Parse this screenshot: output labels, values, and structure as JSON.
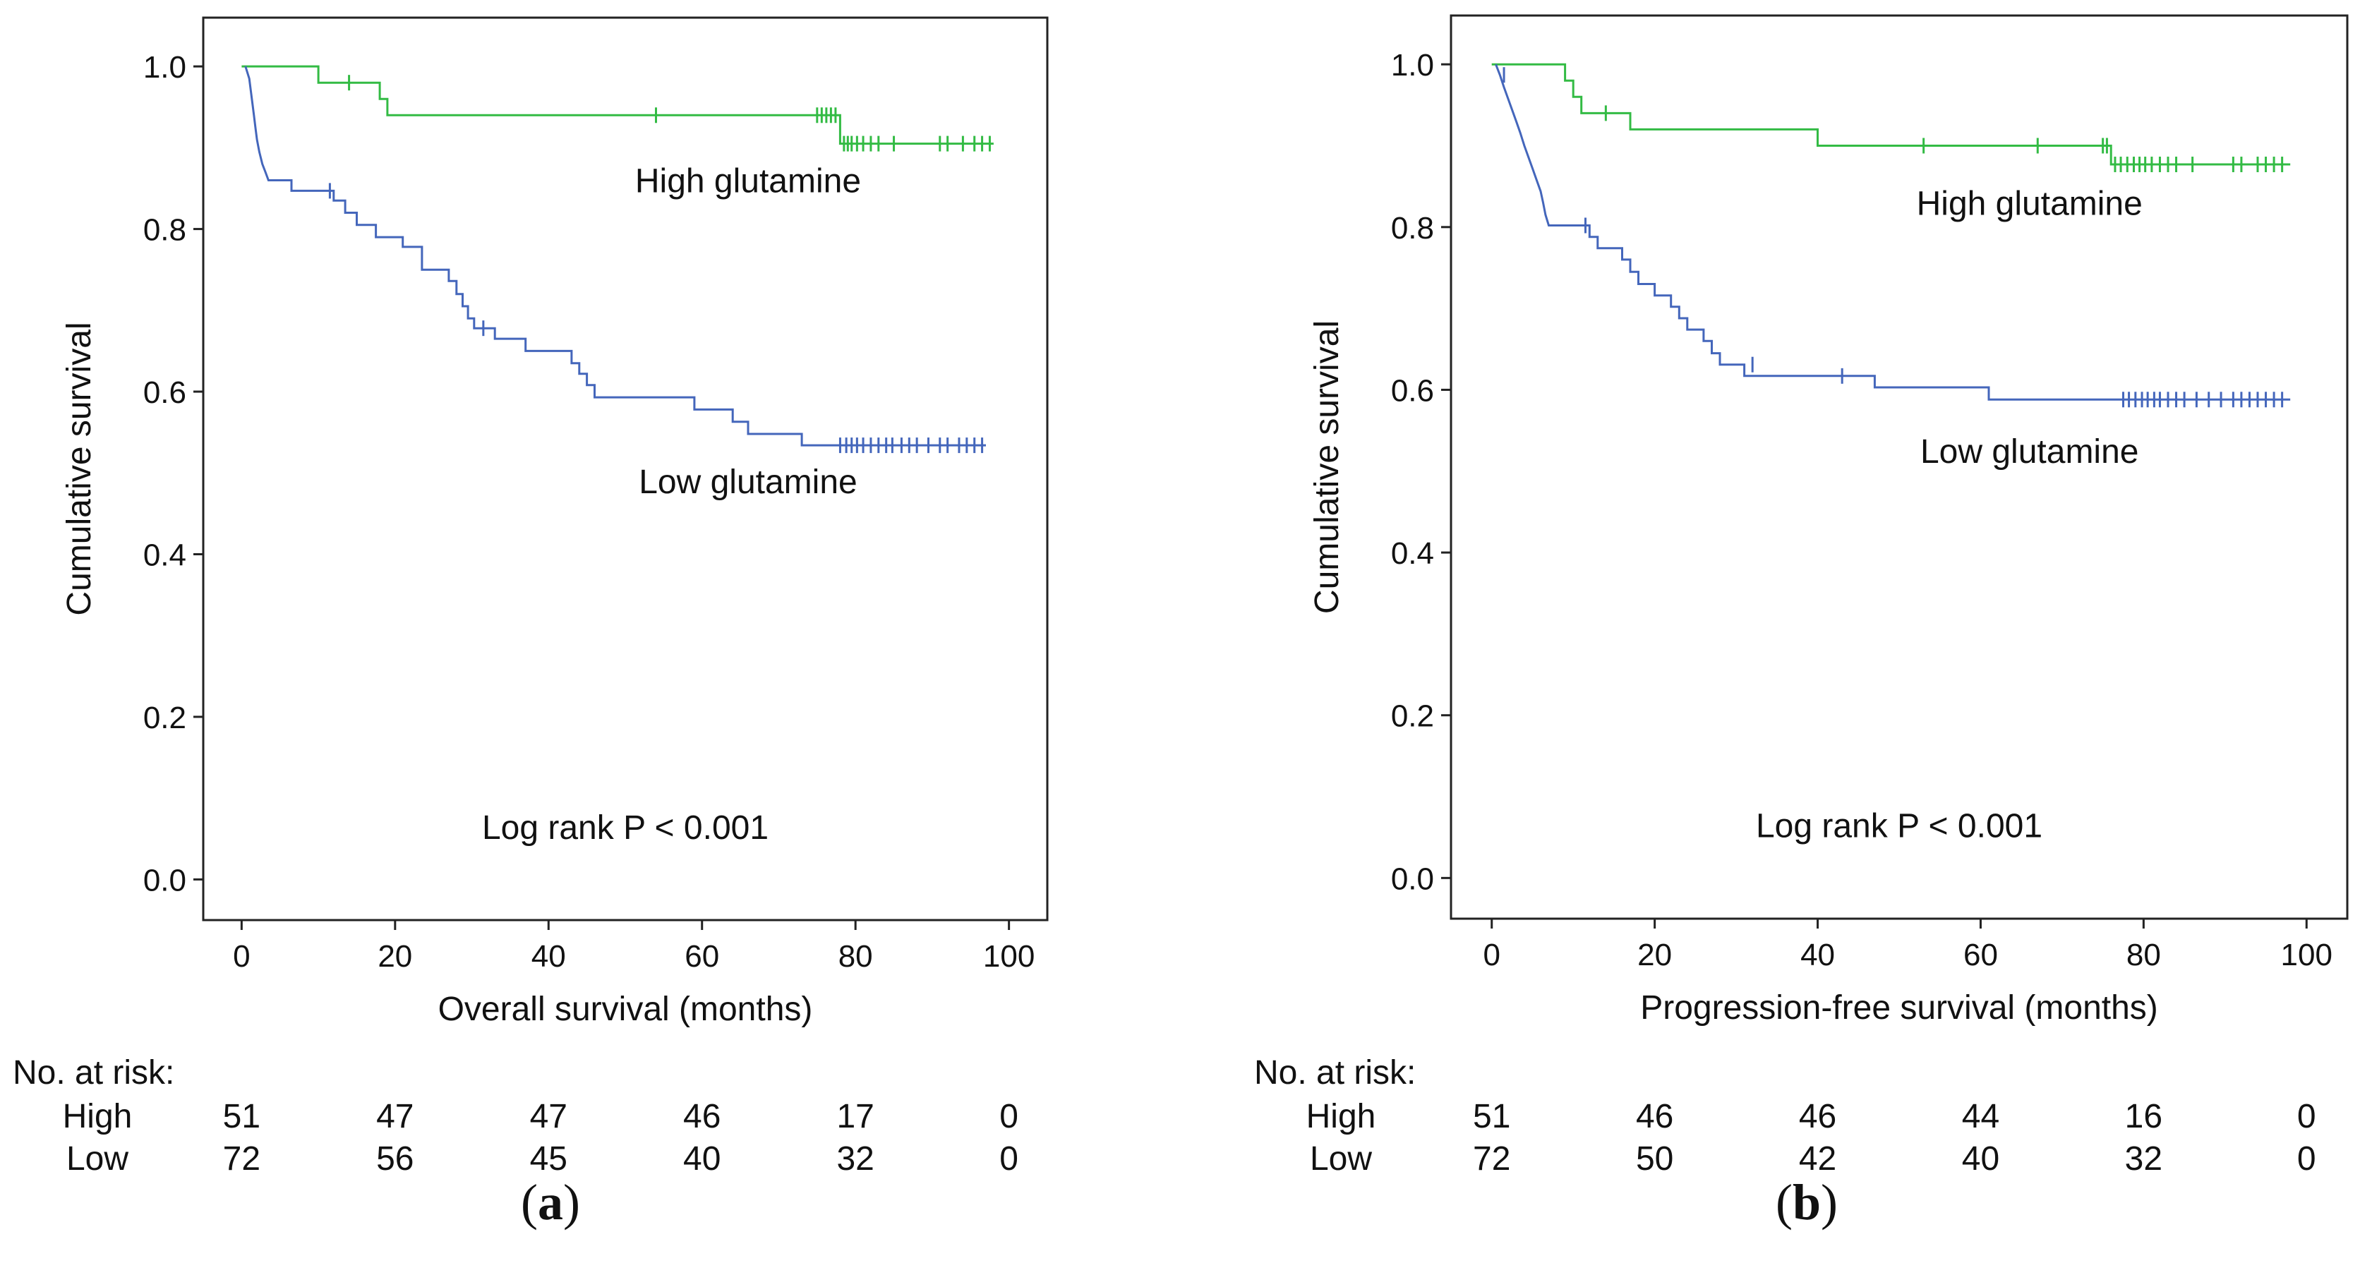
{
  "chart_data": [
    {
      "type": "line",
      "subtype": "kaplan-meier",
      "panel_label": "a",
      "xlabel": "Overall survival (months)",
      "ylabel": "Cumulative survival",
      "xlim": [
        -5,
        105
      ],
      "ylim": [
        -0.05,
        1.06
      ],
      "xticks": [
        0,
        20,
        40,
        60,
        80,
        100
      ],
      "yticks": [
        "0.0",
        "0.2",
        "0.4",
        "0.6",
        "0.8",
        "1.0"
      ],
      "annotation": "Log rank P < 0.001",
      "series": [
        {
          "name": "High glutamine",
          "color": "#33bb44",
          "label_pos": [
            66,
            0.845
          ],
          "points": [
            [
              0,
              1.0
            ],
            [
              10,
              1.0
            ],
            [
              10,
              0.98
            ],
            [
              18,
              0.98
            ],
            [
              18,
              0.96
            ],
            [
              19,
              0.96
            ],
            [
              19,
              0.94
            ],
            [
              78,
              0.94
            ],
            [
              78,
              0.905
            ],
            [
              98,
              0.905
            ]
          ],
          "censors": [
            [
              14,
              0.98
            ],
            [
              54,
              0.94
            ],
            [
              75,
              0.94
            ],
            [
              75.6,
              0.94
            ],
            [
              76.2,
              0.94
            ],
            [
              76.8,
              0.94
            ],
            [
              77.4,
              0.94
            ],
            [
              78.5,
              0.905
            ],
            [
              79,
              0.905
            ],
            [
              79.5,
              0.905
            ],
            [
              80.2,
              0.905
            ],
            [
              81,
              0.905
            ],
            [
              82,
              0.905
            ],
            [
              83,
              0.905
            ],
            [
              85,
              0.905
            ],
            [
              91,
              0.905
            ],
            [
              92,
              0.905
            ],
            [
              94,
              0.905
            ],
            [
              95.5,
              0.905
            ],
            [
              96.5,
              0.905
            ],
            [
              97.5,
              0.905
            ]
          ]
        },
        {
          "name": "Low glutamine",
          "color": "#4466bb",
          "label_pos": [
            66,
            0.475
          ],
          "points": [
            [
              0.5,
              1.0
            ],
            [
              1,
              0.985
            ],
            [
              1.2,
              0.97
            ],
            [
              1.4,
              0.955
            ],
            [
              1.6,
              0.94
            ],
            [
              1.8,
              0.925
            ],
            [
              2,
              0.91
            ],
            [
              2.3,
              0.895
            ],
            [
              2.7,
              0.88
            ],
            [
              3.1,
              0.87
            ],
            [
              3.5,
              0.86
            ],
            [
              6.5,
              0.86
            ],
            [
              6.5,
              0.847
            ],
            [
              12,
              0.847
            ],
            [
              12,
              0.835
            ],
            [
              13.5,
              0.835
            ],
            [
              13.5,
              0.82
            ],
            [
              15,
              0.82
            ],
            [
              15,
              0.805
            ],
            [
              17.5,
              0.805
            ],
            [
              17.5,
              0.79
            ],
            [
              21,
              0.79
            ],
            [
              21,
              0.778
            ],
            [
              23.5,
              0.778
            ],
            [
              23.5,
              0.764
            ],
            [
              23.5,
              0.75
            ],
            [
              27,
              0.75
            ],
            [
              27,
              0.736
            ],
            [
              28,
              0.736
            ],
            [
              28,
              0.72
            ],
            [
              28.8,
              0.72
            ],
            [
              28.8,
              0.705
            ],
            [
              29.5,
              0.705
            ],
            [
              29.5,
              0.69
            ],
            [
              30.3,
              0.69
            ],
            [
              30.3,
              0.678
            ],
            [
              33,
              0.678
            ],
            [
              33,
              0.665
            ],
            [
              37,
              0.665
            ],
            [
              37,
              0.65
            ],
            [
              43,
              0.65
            ],
            [
              43,
              0.635
            ],
            [
              44,
              0.635
            ],
            [
              44,
              0.622
            ],
            [
              45,
              0.622
            ],
            [
              45,
              0.608
            ],
            [
              46,
              0.608
            ],
            [
              46,
              0.593
            ],
            [
              59,
              0.593
            ],
            [
              59,
              0.578
            ],
            [
              64,
              0.578
            ],
            [
              64,
              0.563
            ],
            [
              66,
              0.563
            ],
            [
              66,
              0.548
            ],
            [
              73,
              0.548
            ],
            [
              73,
              0.534
            ],
            [
              97,
              0.534
            ]
          ],
          "censors": [
            [
              11.5,
              0.847
            ],
            [
              31.5,
              0.678
            ],
            [
              78,
              0.534
            ],
            [
              78.8,
              0.534
            ],
            [
              79.5,
              0.534
            ],
            [
              80.2,
              0.534
            ],
            [
              81,
              0.534
            ],
            [
              82,
              0.534
            ],
            [
              83,
              0.534
            ],
            [
              84,
              0.534
            ],
            [
              84.8,
              0.534
            ],
            [
              86,
              0.534
            ],
            [
              87,
              0.534
            ],
            [
              88,
              0.534
            ],
            [
              89.5,
              0.534
            ],
            [
              91,
              0.534
            ],
            [
              92,
              0.534
            ],
            [
              93.5,
              0.534
            ],
            [
              94.5,
              0.534
            ],
            [
              95.5,
              0.534
            ],
            [
              96.5,
              0.534
            ]
          ]
        }
      ],
      "risk_table": {
        "title": "No. at risk:",
        "rows": [
          {
            "label": "High",
            "values": [
              "51",
              "47",
              "47",
              "46",
              "17",
              "0"
            ]
          },
          {
            "label": "Low",
            "values": [
              "72",
              "56",
              "45",
              "40",
              "32",
              "0"
            ]
          }
        ]
      }
    },
    {
      "type": "line",
      "subtype": "kaplan-meier",
      "panel_label": "b",
      "xlabel": "Progression-free survival (months)",
      "ylabel": "Cumulative survival",
      "xlim": [
        -5,
        105
      ],
      "ylim": [
        -0.05,
        1.06
      ],
      "xticks": [
        0,
        20,
        40,
        60,
        80,
        100
      ],
      "yticks": [
        "0.0",
        "0.2",
        "0.4",
        "0.6",
        "0.8",
        "1.0"
      ],
      "annotation": "Log rank P < 0.001",
      "series": [
        {
          "name": "High glutamine",
          "color": "#33bb44",
          "label_pos": [
            66,
            0.815
          ],
          "points": [
            [
              0,
              1.0
            ],
            [
              9,
              1.0
            ],
            [
              9,
              0.98
            ],
            [
              10,
              0.98
            ],
            [
              10,
              0.96
            ],
            [
              11,
              0.96
            ],
            [
              11,
              0.94
            ],
            [
              17,
              0.94
            ],
            [
              17,
              0.92
            ],
            [
              40,
              0.92
            ],
            [
              40,
              0.9
            ],
            [
              76,
              0.9
            ],
            [
              76,
              0.877
            ],
            [
              98,
              0.877
            ]
          ],
          "censors": [
            [
              14,
              0.94
            ],
            [
              53,
              0.9
            ],
            [
              67,
              0.9
            ],
            [
              75,
              0.9
            ],
            [
              75.5,
              0.9
            ],
            [
              76.5,
              0.877
            ],
            [
              77.2,
              0.877
            ],
            [
              78,
              0.877
            ],
            [
              78.8,
              0.877
            ],
            [
              79.5,
              0.877
            ],
            [
              80.2,
              0.877
            ],
            [
              81,
              0.877
            ],
            [
              82,
              0.877
            ],
            [
              83,
              0.877
            ],
            [
              84,
              0.877
            ],
            [
              86,
              0.877
            ],
            [
              91,
              0.877
            ],
            [
              92,
              0.877
            ],
            [
              94,
              0.877
            ],
            [
              95,
              0.877
            ],
            [
              96,
              0.877
            ],
            [
              97,
              0.877
            ]
          ]
        },
        {
          "name": "Low glutamine",
          "color": "#4466bb",
          "label_pos": [
            66,
            0.51
          ],
          "points": [
            [
              0.5,
              1.0
            ],
            [
              1,
              0.987
            ],
            [
              1.5,
              0.972
            ],
            [
              2,
              0.958
            ],
            [
              2.5,
              0.944
            ],
            [
              3,
              0.93
            ],
            [
              3.5,
              0.916
            ],
            [
              4,
              0.9
            ],
            [
              4.5,
              0.886
            ],
            [
              5,
              0.872
            ],
            [
              5.5,
              0.858
            ],
            [
              6,
              0.844
            ],
            [
              6.3,
              0.83
            ],
            [
              6.6,
              0.815
            ],
            [
              7,
              0.802
            ],
            [
              12,
              0.802
            ],
            [
              12,
              0.788
            ],
            [
              13,
              0.788
            ],
            [
              13,
              0.774
            ],
            [
              16,
              0.774
            ],
            [
              16,
              0.76
            ],
            [
              17,
              0.76
            ],
            [
              17,
              0.745
            ],
            [
              18,
              0.745
            ],
            [
              18,
              0.73
            ],
            [
              20,
              0.73
            ],
            [
              20,
              0.716
            ],
            [
              22,
              0.716
            ],
            [
              22,
              0.702
            ],
            [
              23,
              0.702
            ],
            [
              23,
              0.688
            ],
            [
              24,
              0.688
            ],
            [
              24,
              0.674
            ],
            [
              26,
              0.674
            ],
            [
              26,
              0.66
            ],
            [
              27,
              0.66
            ],
            [
              27,
              0.645
            ],
            [
              28,
              0.645
            ],
            [
              28,
              0.631
            ],
            [
              31,
              0.631
            ],
            [
              31,
              0.617
            ],
            [
              47,
              0.617
            ],
            [
              47,
              0.603
            ],
            [
              61,
              0.603
            ],
            [
              61,
              0.588
            ],
            [
              98,
              0.588
            ]
          ],
          "censors": [
            [
              1.5,
              0.987
            ],
            [
              11.5,
              0.802
            ],
            [
              32,
              0.631
            ],
            [
              43,
              0.617
            ],
            [
              77.5,
              0.588
            ],
            [
              78.2,
              0.588
            ],
            [
              79,
              0.588
            ],
            [
              79.8,
              0.588
            ],
            [
              80.5,
              0.588
            ],
            [
              81.3,
              0.588
            ],
            [
              82,
              0.588
            ],
            [
              83,
              0.588
            ],
            [
              84,
              0.588
            ],
            [
              85,
              0.588
            ],
            [
              86.5,
              0.588
            ],
            [
              88,
              0.588
            ],
            [
              89.5,
              0.588
            ],
            [
              91,
              0.588
            ],
            [
              92,
              0.588
            ],
            [
              93,
              0.588
            ],
            [
              94,
              0.588
            ],
            [
              95,
              0.588
            ],
            [
              96,
              0.588
            ],
            [
              97,
              0.588
            ]
          ]
        }
      ],
      "risk_table": {
        "title": "No. at risk:",
        "rows": [
          {
            "label": "High",
            "values": [
              "51",
              "46",
              "46",
              "44",
              "16",
              "0"
            ]
          },
          {
            "label": "Low",
            "values": [
              "72",
              "50",
              "42",
              "40",
              "32",
              "0"
            ]
          }
        ]
      }
    }
  ]
}
